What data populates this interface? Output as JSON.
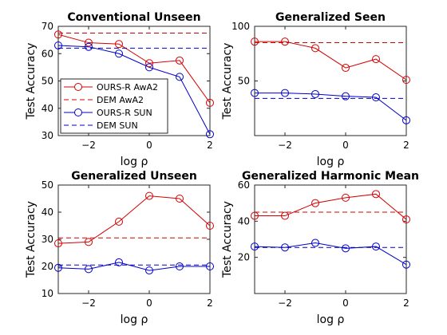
{
  "colors": {
    "ours_awa2": "#d40000",
    "dem_awa2": "#d40000",
    "ours_sun": "#0000c8",
    "dem_sun": "#0000c8",
    "axis": "#262626"
  },
  "chart_data": [
    {
      "type": "line",
      "title": "Conventional Unseen",
      "xlabel": "log ρ",
      "ylabel": "Test Accuracy",
      "xlim": [
        -3,
        2
      ],
      "ylim": [
        30,
        70
      ],
      "xticks": [
        -2,
        0,
        2
      ],
      "yticks": [
        30,
        40,
        50,
        60,
        70
      ],
      "x": [
        -3,
        -2,
        -1,
        0,
        1,
        2
      ],
      "legend": {
        "placement": "bottom-left",
        "entries": [
          "OURS-R AwA2",
          "DEM AwA2",
          "OURS-R SUN",
          "DEM SUN"
        ]
      },
      "series": [
        {
          "name": "OURS-R AwA2",
          "style": "solid-marker",
          "color_key": "ours_awa2",
          "values": [
            67,
            64,
            63.5,
            56.5,
            57.5,
            42
          ]
        },
        {
          "name": "DEM AwA2",
          "style": "dashed",
          "color_key": "dem_awa2",
          "values": [
            67.5,
            67.5,
            67.5,
            67.5,
            67.5,
            67.5
          ]
        },
        {
          "name": "OURS-R SUN",
          "style": "solid-marker",
          "color_key": "ours_sun",
          "values": [
            63,
            62.5,
            60,
            55,
            51.5,
            30.5
          ]
        },
        {
          "name": "DEM SUN",
          "style": "dashed",
          "color_key": "dem_sun",
          "values": [
            62,
            62,
            62,
            62,
            62,
            62
          ]
        }
      ]
    },
    {
      "type": "line",
      "title": "Generalized Seen",
      "xlabel": "log ρ",
      "ylabel": "Test Accuracy",
      "xlim": [
        -3,
        2
      ],
      "ylim": [
        0,
        100
      ],
      "xticks": [
        -2,
        0,
        2
      ],
      "yticks": [
        50,
        100
      ],
      "x": [
        -3,
        -2,
        -1,
        0,
        1,
        2
      ],
      "series": [
        {
          "name": "OURS-R AwA2",
          "style": "solid-marker",
          "color_key": "ours_awa2",
          "values": [
            86,
            86,
            80,
            62,
            70,
            51
          ]
        },
        {
          "name": "DEM AwA2",
          "style": "dashed",
          "color_key": "dem_awa2",
          "values": [
            85,
            85,
            85,
            85,
            85,
            85
          ]
        },
        {
          "name": "OURS-R SUN",
          "style": "solid-marker",
          "color_key": "ours_sun",
          "values": [
            39,
            39,
            38,
            36,
            35,
            14
          ]
        },
        {
          "name": "DEM SUN",
          "style": "dashed",
          "color_key": "dem_sun",
          "values": [
            34,
            34,
            34,
            34,
            34,
            34
          ]
        }
      ]
    },
    {
      "type": "line",
      "title": "Generalized Unseen",
      "xlabel": "log ρ",
      "ylabel": "Test Accuracy",
      "xlim": [
        -3,
        2
      ],
      "ylim": [
        10,
        50
      ],
      "xticks": [
        -2,
        0,
        2
      ],
      "yticks": [
        10,
        20,
        30,
        40,
        50
      ],
      "x": [
        -3,
        -2,
        -1,
        0,
        1,
        2
      ],
      "series": [
        {
          "name": "OURS-R AwA2",
          "style": "solid-marker",
          "color_key": "ours_awa2",
          "values": [
            28.5,
            29,
            36.5,
            46,
            45,
            35
          ]
        },
        {
          "name": "DEM AwA2",
          "style": "dashed",
          "color_key": "dem_awa2",
          "values": [
            30.5,
            30.5,
            30.5,
            30.5,
            30.5,
            30.5
          ]
        },
        {
          "name": "OURS-R SUN",
          "style": "solid-marker",
          "color_key": "ours_sun",
          "values": [
            19.5,
            19,
            21.5,
            18.5,
            20,
            20
          ]
        },
        {
          "name": "DEM SUN",
          "style": "dashed",
          "color_key": "dem_sun",
          "values": [
            20.5,
            20.5,
            20.5,
            20.5,
            20.5,
            20.5
          ]
        }
      ]
    },
    {
      "type": "line",
      "title": "Generalized Harmonic Mean",
      "xlabel": "log ρ",
      "ylabel": "Test Accuracy",
      "xlim": [
        -3,
        2
      ],
      "ylim": [
        0,
        60
      ],
      "xticks": [
        -2,
        0,
        2
      ],
      "yticks": [
        20,
        40,
        60
      ],
      "x": [
        -3,
        -2,
        -1,
        0,
        1,
        2
      ],
      "series": [
        {
          "name": "OURS-R AwA2",
          "style": "solid-marker",
          "color_key": "ours_awa2",
          "values": [
            43,
            43,
            50,
            53,
            55,
            41
          ]
        },
        {
          "name": "DEM AwA2",
          "style": "dashed",
          "color_key": "dem_awa2",
          "values": [
            45,
            45,
            45,
            45,
            45,
            45
          ]
        },
        {
          "name": "OURS-R SUN",
          "style": "solid-marker",
          "color_key": "ours_sun",
          "values": [
            26,
            25.5,
            28,
            25,
            26,
            16
          ]
        },
        {
          "name": "DEM SUN",
          "style": "dashed",
          "color_key": "dem_sun",
          "values": [
            25.5,
            25.5,
            25.5,
            25.5,
            25.5,
            25.5
          ]
        }
      ]
    }
  ]
}
